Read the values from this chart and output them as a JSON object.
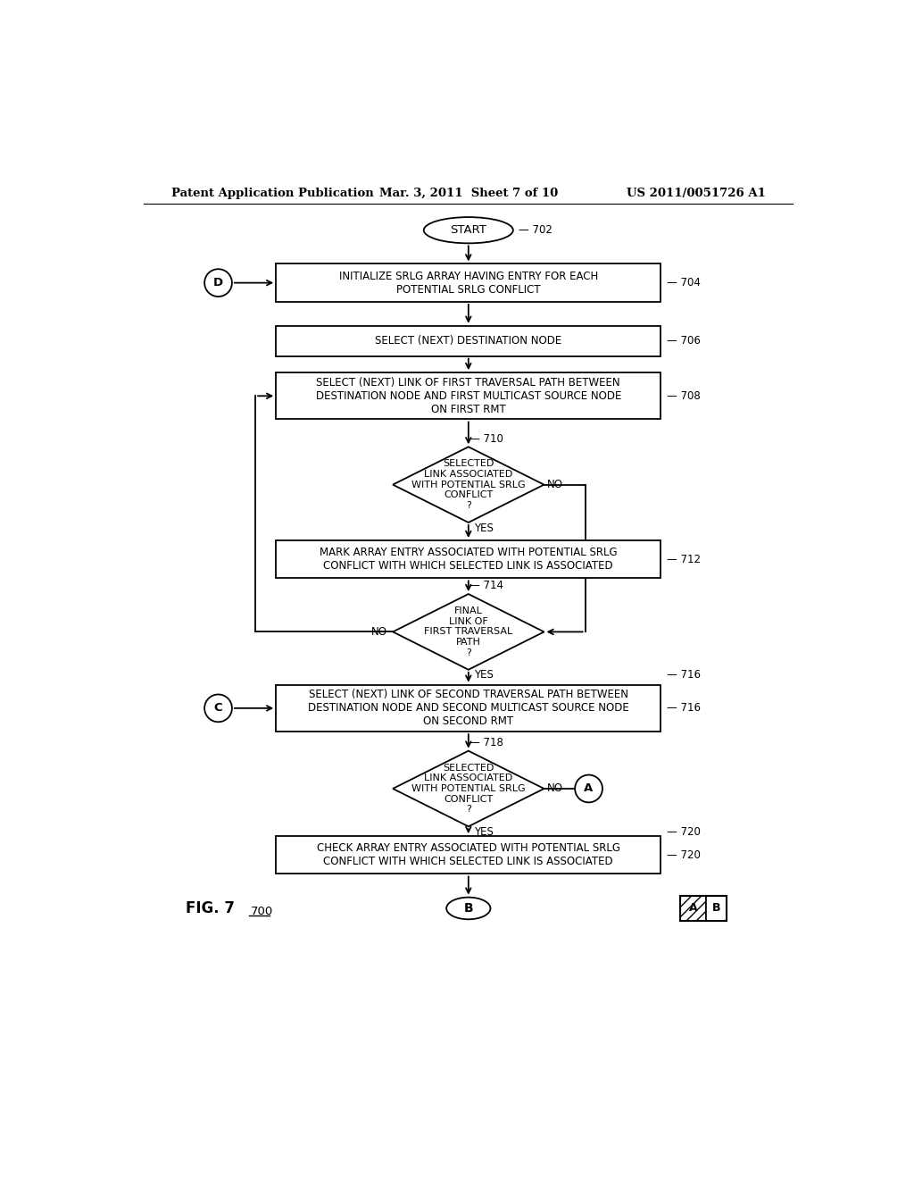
{
  "title_left": "Patent Application Publication",
  "title_mid": "Mar. 3, 2011  Sheet 7 of 10",
  "title_right": "US 2011/0051726 A1",
  "fig_label": "FIG. 7",
  "fig_number": "700",
  "bg_color": "#ffffff"
}
